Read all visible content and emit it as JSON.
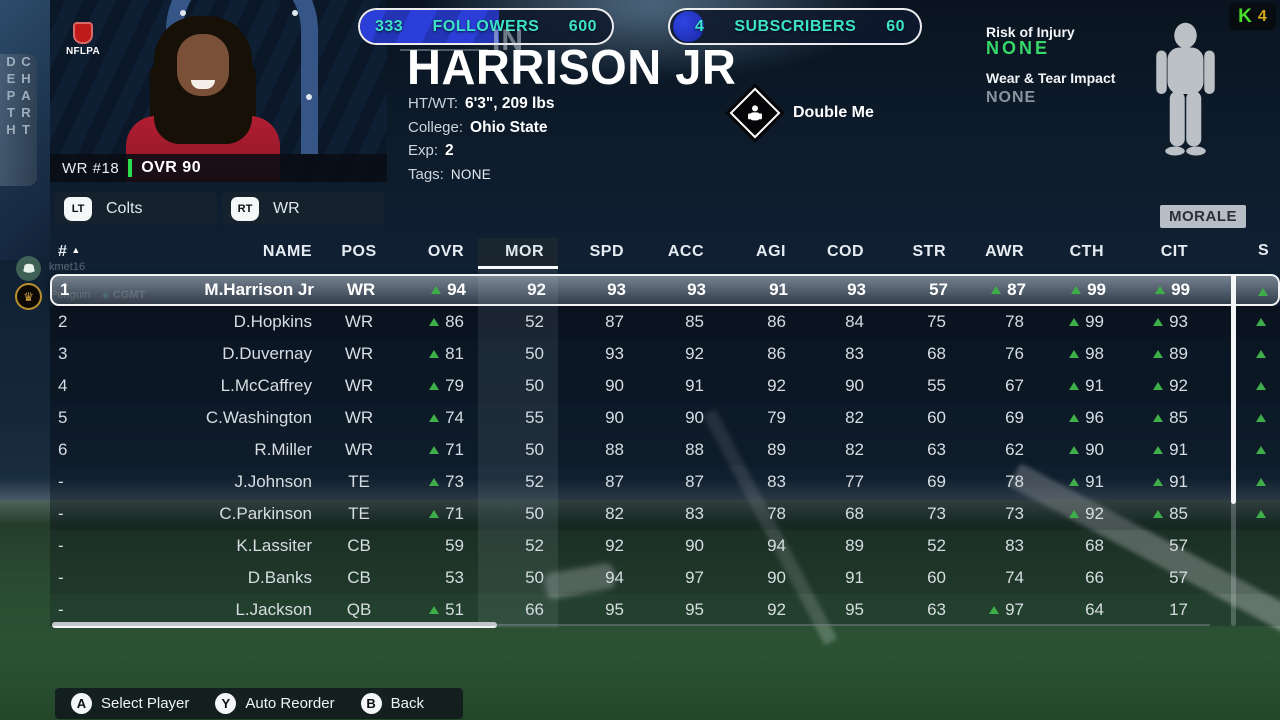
{
  "colors": {
    "accent_teal": "#3be3c8",
    "arrow_green": "#3fae4a",
    "ovr_bar_green": "#2ae04e",
    "none_green": "#35d969",
    "progress_blue": "#2b3fd8"
  },
  "left_tab": {
    "label": "DEPTH CHART"
  },
  "player_card": {
    "nflpa_label": "NFLPA",
    "jersey_line": "WR #18",
    "ovr_line": "OVR 90"
  },
  "filters": {
    "left": {
      "button": "LT",
      "label": "Colts"
    },
    "right": {
      "button": "RT",
      "label": "WR"
    }
  },
  "profile": {
    "followers": {
      "current": "333",
      "label": "FOLLOWERS",
      "goal": "600"
    },
    "subscribers": {
      "current": "4",
      "label": "SUBSCRIBERS",
      "goal": "60"
    },
    "name_partial": "IN",
    "last_name": "HARRISON JR",
    "info": [
      {
        "label": "HT/WT:",
        "value": "6'3\", 209 lbs",
        "bold": true
      },
      {
        "label": "College:",
        "value": "Ohio State",
        "bold": true
      },
      {
        "label": "Exp:",
        "value": "2",
        "bold": true
      },
      {
        "label": "Tags:",
        "value": "NONE",
        "bold": false
      }
    ],
    "ability_label": "Double Me",
    "risk_of_injury": {
      "label": "Risk of Injury",
      "value": "NONE"
    },
    "wear_tear": {
      "label": "Wear & Tear Impact",
      "value": "NONE"
    }
  },
  "morale_label": "MORALE",
  "stream_overlay": {
    "counter_badge": {
      "letter": "K",
      "value": "4"
    },
    "user1": {
      "name": "kmet16"
    },
    "user2": {
      "name": "Penguin",
      "badge_icon": "◆",
      "badge": "CGMT"
    }
  },
  "table": {
    "sort_arrow": "▲",
    "active_column": "MOR",
    "columns": [
      "#",
      "NAME",
      "POS",
      "OVR",
      "MOR",
      "SPD",
      "ACC",
      "AGI",
      "COD",
      "STR",
      "AWR",
      "CTH",
      "CIT"
    ],
    "cut_column_label": "S",
    "rows": [
      {
        "cells": [
          "1",
          "M.Harrison Jr",
          "WR",
          "^94",
          "92",
          "93",
          "93",
          "91",
          "93",
          "57",
          "^87",
          "^99",
          "^99"
        ],
        "cut_arrow": true,
        "selected": true
      },
      {
        "cells": [
          "2",
          "D.Hopkins",
          "WR",
          "^86",
          "52",
          "87",
          "85",
          "86",
          "84",
          "75",
          "78",
          "^99",
          "^93"
        ],
        "cut_arrow": true,
        "selected": false
      },
      {
        "cells": [
          "3",
          "D.Duvernay",
          "WR",
          "^81",
          "50",
          "93",
          "92",
          "86",
          "83",
          "68",
          "76",
          "^98",
          "^89"
        ],
        "cut_arrow": true,
        "selected": false
      },
      {
        "cells": [
          "4",
          "L.McCaffrey",
          "WR",
          "^79",
          "50",
          "90",
          "91",
          "92",
          "90",
          "55",
          "67",
          "^91",
          "^92"
        ],
        "cut_arrow": true,
        "selected": false
      },
      {
        "cells": [
          "5",
          "C.Washington",
          "WR",
          "^74",
          "55",
          "90",
          "90",
          "79",
          "82",
          "60",
          "69",
          "^96",
          "^85"
        ],
        "cut_arrow": true,
        "selected": false
      },
      {
        "cells": [
          "6",
          "R.Miller",
          "WR",
          "^71",
          "50",
          "88",
          "88",
          "89",
          "82",
          "63",
          "62",
          "^90",
          "^91"
        ],
        "cut_arrow": true,
        "selected": false
      },
      {
        "cells": [
          "-",
          "J.Johnson",
          "TE",
          "^73",
          "52",
          "87",
          "87",
          "83",
          "77",
          "69",
          "78",
          "^91",
          "^91"
        ],
        "cut_arrow": true,
        "selected": false
      },
      {
        "cells": [
          "-",
          "C.Parkinson",
          "TE",
          "^71",
          "50",
          "82",
          "83",
          "78",
          "68",
          "73",
          "73",
          "^92",
          "^85"
        ],
        "cut_arrow": true,
        "selected": false
      },
      {
        "cells": [
          "-",
          "K.Lassiter",
          "CB",
          "59",
          "52",
          "92",
          "90",
          "94",
          "89",
          "52",
          "83",
          "68",
          "57"
        ],
        "cut_arrow": false,
        "selected": false
      },
      {
        "cells": [
          "-",
          "D.Banks",
          "CB",
          "53",
          "50",
          "94",
          "97",
          "90",
          "91",
          "60",
          "74",
          "66",
          "57"
        ],
        "cut_arrow": false,
        "selected": false
      },
      {
        "cells": [
          "-",
          "L.Jackson",
          "QB",
          "^51",
          "66",
          "95",
          "95",
          "92",
          "95",
          "63",
          "^97",
          "64",
          "17"
        ],
        "cut_arrow": false,
        "selected": false
      }
    ]
  },
  "footer": {
    "buttons": [
      {
        "key": "A",
        "label": "Select Player"
      },
      {
        "key": "Y",
        "label": "Auto Reorder"
      },
      {
        "key": "B",
        "label": "Back"
      }
    ]
  }
}
